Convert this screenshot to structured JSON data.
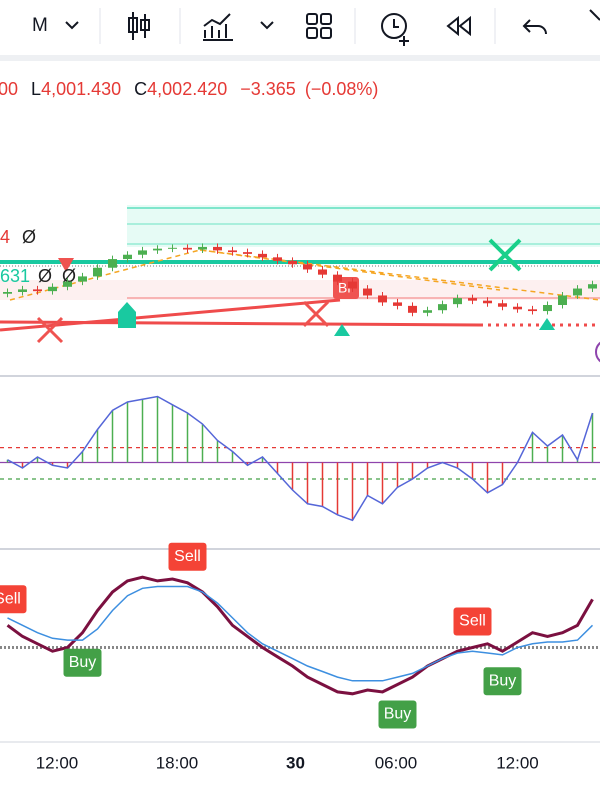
{
  "toolbar": {
    "interval": "M"
  },
  "header": {
    "open_fragment": "00",
    "low_label": "L",
    "low": "4,001.430",
    "close_label": "C",
    "close": "4,002.420",
    "change": "−3.365",
    "change_pct": "(−0.08%)"
  },
  "chart_data": [
    {
      "type": "candlestick",
      "xlim": [
        -0.5,
        39.5
      ],
      "ylim": [
        3990,
        4020
      ],
      "up_color": "#4caf50",
      "down_color": "#e53935",
      "labels": [
        {
          "text": "4",
          "color": "#e53935"
        },
        {
          "text": "Ø",
          "color": "#222222"
        },
        {
          "text": "631",
          "color": "#19c9a0"
        },
        {
          "text": "Ø",
          "color": "#222222"
        },
        {
          "text": "Ø",
          "color": "#222222"
        }
      ],
      "annotation": "Br",
      "open": [
        3998.8,
        3999.0,
        3999.3,
        3999.1,
        3999.6,
        4000.2,
        4000.8,
        4001.8,
        4002.8,
        4003.3,
        4003.8,
        4004.0,
        4004.1,
        4003.9,
        4004.2,
        4003.8,
        4003.6,
        4003.4,
        4003.0,
        4002.6,
        4002.2,
        4001.6,
        4001.0,
        4000.2,
        3999.4,
        3998.6,
        3997.8,
        3997.4,
        3996.6,
        3996.9,
        3997.6,
        3998.3,
        3998.0,
        3997.7,
        3997.3,
        3997.0,
        3996.8,
        3997.5,
        3998.6,
        3999.4
      ],
      "high": [
        3999.4,
        3999.7,
        3999.7,
        4000.0,
        4000.6,
        4001.2,
        4002.2,
        4003.2,
        4003.7,
        4004.2,
        4004.4,
        4004.5,
        4004.5,
        4004.6,
        4004.6,
        4004.2,
        4004.0,
        4003.8,
        4003.4,
        4003.0,
        4002.6,
        4002.0,
        4001.4,
        4000.6,
        3999.8,
        3999.0,
        3998.2,
        3997.8,
        3997.3,
        3998.0,
        3998.7,
        3998.7,
        3998.4,
        3998.1,
        3997.7,
        3997.4,
        3997.9,
        3999.0,
        3999.8,
        4000.3
      ],
      "low": [
        3998.4,
        3998.6,
        3998.7,
        3998.7,
        3999.2,
        3999.8,
        4000.4,
        4001.4,
        4002.4,
        4002.9,
        4003.4,
        4003.6,
        4003.5,
        4003.5,
        4003.4,
        4003.2,
        4003.0,
        4002.6,
        4002.2,
        4001.8,
        4001.2,
        4000.6,
        3999.8,
        3999.0,
        3998.2,
        3997.4,
        3997.0,
        3996.2,
        3996.2,
        3996.5,
        3997.2,
        3997.6,
        3997.3,
        3996.9,
        3996.6,
        3996.4,
        3996.4,
        3997.1,
        3998.2,
        3999.0
      ],
      "close": [
        3999.0,
        3999.3,
        3999.1,
        3999.6,
        4000.2,
        4000.8,
        4001.8,
        4002.8,
        4003.3,
        4003.8,
        4004.0,
        4004.1,
        4003.9,
        4004.2,
        4003.8,
        4003.6,
        4003.4,
        4003.0,
        4002.6,
        4002.2,
        4001.6,
        4001.0,
        4000.2,
        3999.4,
        3998.6,
        3997.8,
        3997.4,
        3996.6,
        3996.9,
        3997.6,
        3998.3,
        3998.0,
        3997.7,
        3997.3,
        3997.0,
        3996.8,
        3997.5,
        3998.6,
        3999.4,
        3999.9
      ]
    },
    {
      "type": "oscillator",
      "xlim": [
        -0.5,
        39.5
      ],
      "ylim": [
        -1.5,
        1.5
      ],
      "line_color": "#5566d8",
      "up_color": "#4caf50",
      "down_color": "#e53935",
      "levels": [
        {
          "value": 0.27,
          "color": "#e53935"
        },
        {
          "value": -0.3,
          "color": "#43a047"
        },
        {
          "value": 0,
          "color": "#8e44ad"
        }
      ],
      "values": [
        0.05,
        -0.1,
        0.1,
        -0.05,
        -0.1,
        0.2,
        0.6,
        0.95,
        1.1,
        1.15,
        1.2,
        1.05,
        0.9,
        0.7,
        0.4,
        0.2,
        -0.05,
        0.1,
        -0.2,
        -0.5,
        -0.75,
        -0.8,
        -0.95,
        -1.05,
        -0.6,
        -0.75,
        -0.45,
        -0.3,
        -0.1,
        0.0,
        -0.1,
        -0.3,
        -0.55,
        -0.4,
        0.0,
        0.55,
        0.3,
        0.5,
        0.05,
        0.9
      ]
    },
    {
      "type": "line",
      "xlim": [
        -0.5,
        39.5
      ],
      "ylim": [
        0,
        100
      ],
      "level": 50,
      "series": [
        {
          "color": "#7b1040",
          "values": [
            62,
            56,
            52,
            48,
            50,
            58,
            70,
            80,
            86,
            88,
            86,
            87,
            85,
            80,
            72,
            62,
            56,
            50,
            45,
            40,
            34,
            30,
            26,
            25,
            27,
            26,
            30,
            34,
            40,
            44,
            48,
            50,
            52,
            48,
            53,
            58,
            56,
            58,
            62,
            76
          ]
        },
        {
          "color": "#3d8fe0",
          "values": [
            66,
            62,
            58,
            55,
            54,
            54,
            60,
            70,
            78,
            82,
            83,
            83,
            83,
            80,
            74,
            66,
            58,
            52,
            48,
            44,
            40,
            37,
            34,
            32,
            32,
            32,
            34,
            36,
            40,
            44,
            47,
            48,
            47,
            46,
            50,
            52,
            53,
            53,
            54,
            62
          ]
        }
      ],
      "signals": [
        {
          "label": "Sell",
          "index": 0
        },
        {
          "label": "Buy",
          "index": 5
        },
        {
          "label": "Sell",
          "index": 12
        },
        {
          "label": "Buy",
          "index": 26
        },
        {
          "label": "Sell",
          "index": 31
        },
        {
          "label": "Buy",
          "index": 33
        }
      ],
      "xticks": [
        {
          "value": 3.3,
          "label": "12:00"
        },
        {
          "value": 11.3,
          "label": "18:00"
        },
        {
          "value": 19.2,
          "label": "30"
        },
        {
          "value": 25.9,
          "label": "06:00"
        },
        {
          "value": 34.0,
          "label": "12:00"
        }
      ]
    }
  ]
}
